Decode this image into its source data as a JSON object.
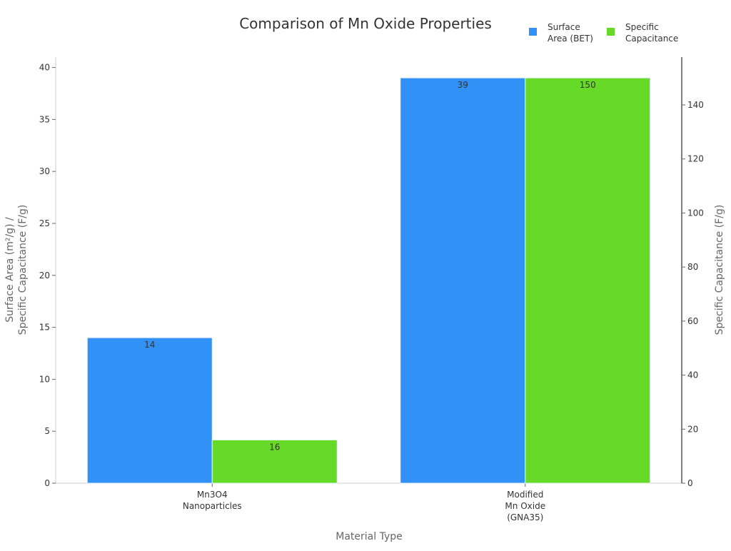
{
  "chart_data": {
    "type": "bar",
    "title": "Comparison of Mn Oxide Properties",
    "xlabel": "Material Type",
    "ylabel_left": [
      "Surface Area (m²/g) /",
      "Specific Capacitance (F/g)"
    ],
    "ylabel_right": "Specific Capacitance (F/g)",
    "categories": [
      [
        "Mn3O4",
        "Nanoparticles"
      ],
      [
        "Modified",
        "Mn Oxide",
        "(GNA35)"
      ]
    ],
    "series": [
      {
        "name": [
          "Surface",
          "Area (BET)"
        ],
        "axis": "left",
        "color": "#3191f7",
        "values": [
          14,
          39
        ]
      },
      {
        "name": [
          "Specific",
          "Capacitance"
        ],
        "axis": "right",
        "color": "#66da26",
        "values": [
          16,
          150
        ]
      }
    ],
    "ylim_left": [
      0,
      41
    ],
    "ylim_right": [
      0,
      157.7
    ],
    "yticks_left": [
      0,
      5,
      10,
      15,
      20,
      25,
      30,
      35,
      40
    ],
    "yticks_right": [
      0,
      20,
      40,
      60,
      80,
      100,
      120,
      140
    ],
    "grid": false,
    "legend": "top-right"
  }
}
